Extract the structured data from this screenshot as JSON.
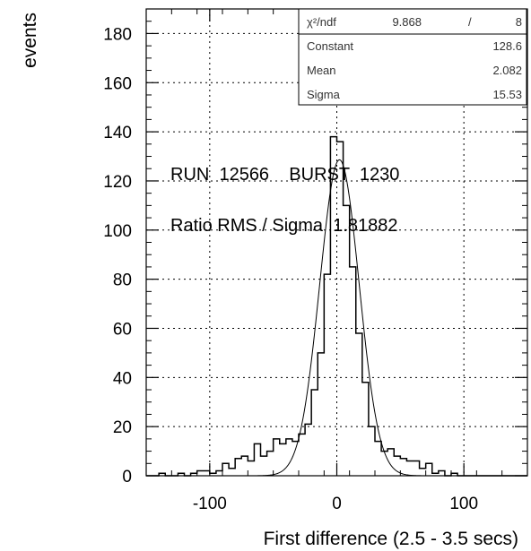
{
  "chart_data": {
    "type": "histogram",
    "title": "",
    "xlabel": "First difference (2.5 - 3.5 secs)",
    "ylabel": "events",
    "xlim": [
      -150,
      150
    ],
    "ylim": [
      0,
      190
    ],
    "x_ticks": [
      -100,
      0,
      100
    ],
    "y_ticks": [
      0,
      20,
      40,
      60,
      80,
      100,
      120,
      140,
      160,
      180
    ],
    "grid": true,
    "bin_width": 5,
    "bins": [
      {
        "x0": -150,
        "x1": -140,
        "y": 0
      },
      {
        "x0": -140,
        "x1": -135,
        "y": 1
      },
      {
        "x0": -135,
        "x1": -125,
        "y": 0
      },
      {
        "x0": -125,
        "x1": -120,
        "y": 1
      },
      {
        "x0": -120,
        "x1": -115,
        "y": 0
      },
      {
        "x0": -115,
        "x1": -110,
        "y": 1
      },
      {
        "x0": -110,
        "x1": -100,
        "y": 2
      },
      {
        "x0": -100,
        "x1": -95,
        "y": 1
      },
      {
        "x0": -95,
        "x1": -90,
        "y": 2
      },
      {
        "x0": -90,
        "x1": -85,
        "y": 5
      },
      {
        "x0": -85,
        "x1": -80,
        "y": 3
      },
      {
        "x0": -80,
        "x1": -75,
        "y": 7
      },
      {
        "x0": -75,
        "x1": -70,
        "y": 8
      },
      {
        "x0": -70,
        "x1": -65,
        "y": 6
      },
      {
        "x0": -65,
        "x1": -60,
        "y": 13
      },
      {
        "x0": -60,
        "x1": -55,
        "y": 8
      },
      {
        "x0": -55,
        "x1": -50,
        "y": 10
      },
      {
        "x0": -50,
        "x1": -45,
        "y": 15
      },
      {
        "x0": -45,
        "x1": -40,
        "y": 13
      },
      {
        "x0": -40,
        "x1": -35,
        "y": 15
      },
      {
        "x0": -35,
        "x1": -30,
        "y": 14
      },
      {
        "x0": -30,
        "x1": -25,
        "y": 17
      },
      {
        "x0": -25,
        "x1": -20,
        "y": 21
      },
      {
        "x0": -20,
        "x1": -15,
        "y": 35
      },
      {
        "x0": -15,
        "x1": -10,
        "y": 50
      },
      {
        "x0": -10,
        "x1": -5,
        "y": 82
      },
      {
        "x0": -5,
        "x1": 0,
        "y": 138
      },
      {
        "x0": 0,
        "x1": 5,
        "y": 136
      },
      {
        "x0": 5,
        "x1": 10,
        "y": 110
      },
      {
        "x0": 10,
        "x1": 15,
        "y": 85
      },
      {
        "x0": 15,
        "x1": 20,
        "y": 58
      },
      {
        "x0": 20,
        "x1": 25,
        "y": 38
      },
      {
        "x0": 25,
        "x1": 30,
        "y": 20
      },
      {
        "x0": 30,
        "x1": 35,
        "y": 14
      },
      {
        "x0": 35,
        "x1": 40,
        "y": 10
      },
      {
        "x0": 40,
        "x1": 45,
        "y": 11
      },
      {
        "x0": 45,
        "x1": 50,
        "y": 8
      },
      {
        "x0": 50,
        "x1": 55,
        "y": 7
      },
      {
        "x0": 55,
        "x1": 60,
        "y": 6
      },
      {
        "x0": 60,
        "x1": 65,
        "y": 6
      },
      {
        "x0": 65,
        "x1": 70,
        "y": 3
      },
      {
        "x0": 70,
        "x1": 75,
        "y": 5
      },
      {
        "x0": 75,
        "x1": 80,
        "y": 1
      },
      {
        "x0": 80,
        "x1": 85,
        "y": 2
      },
      {
        "x0": 85,
        "x1": 90,
        "y": 0
      },
      {
        "x0": 90,
        "x1": 95,
        "y": 1
      },
      {
        "x0": 95,
        "x1": 150,
        "y": 0
      }
    ],
    "fit": {
      "type": "gaussian",
      "constant": 128.6,
      "mean": 2.082,
      "sigma": 15.53
    },
    "stats_box": {
      "placement": "top-right",
      "rows": [
        {
          "label": "χ²/ndf",
          "value": "9.868",
          "sep": "/",
          "value2": "8"
        },
        {
          "label": "Constant",
          "value": "128.6"
        },
        {
          "label": "Mean",
          "value": "2.082"
        },
        {
          "label": "Sigma",
          "value": "15.53"
        }
      ]
    },
    "annotations": [
      "RUN  12566    BURST  1230",
      "Ratio RMS / Sigma  1.81882"
    ]
  }
}
